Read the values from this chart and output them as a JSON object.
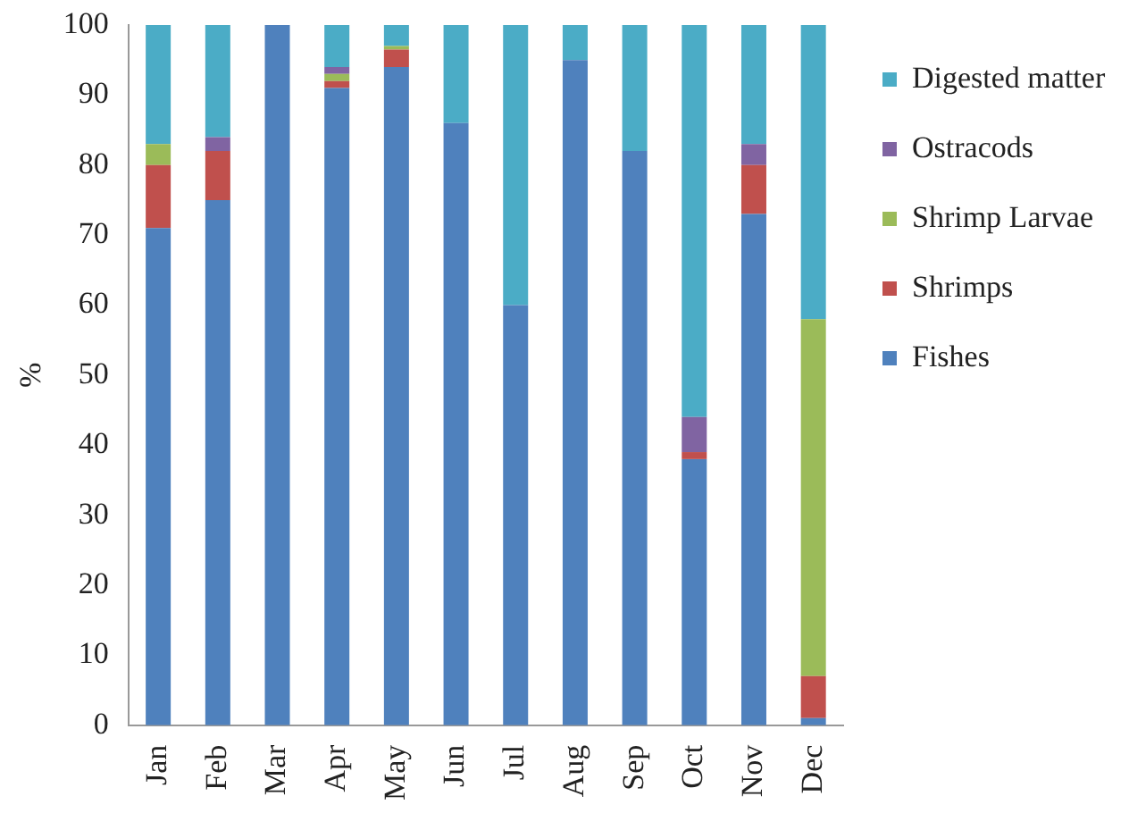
{
  "chart_data": {
    "type": "bar",
    "stacked": true,
    "ylabel": "%",
    "categories": [
      "Jan",
      "Feb",
      "Mar",
      "Apr",
      "May",
      "Jun",
      "Jul",
      "Aug",
      "Sep",
      "Oct",
      "Nov",
      "Dec"
    ],
    "series": [
      {
        "name": "Fishes",
        "color": "#4f81bd",
        "values": [
          71,
          75,
          100,
          91,
          94,
          86,
          60,
          95,
          82,
          38,
          73,
          1
        ]
      },
      {
        "name": "Shrimps",
        "color": "#c0504d",
        "values": [
          9,
          7,
          0,
          1,
          2.5,
          0,
          0,
          0,
          0,
          1,
          7,
          6
        ]
      },
      {
        "name": "Shrimp Larvae",
        "color": "#9bbb59",
        "values": [
          3,
          0,
          0,
          1,
          0.5,
          0,
          0,
          0,
          0,
          0,
          0,
          51
        ]
      },
      {
        "name": "Ostracods",
        "color": "#8064a2",
        "values": [
          0,
          2,
          0,
          1,
          0,
          0,
          0,
          0,
          0,
          5,
          3,
          0
        ]
      },
      {
        "name": "Digested matter",
        "color": "#4bacc6",
        "values": [
          17,
          16,
          0,
          6,
          3,
          14,
          40,
          5,
          18,
          56,
          17,
          42
        ]
      }
    ],
    "ylim": [
      0,
      100
    ],
    "yticks": [
      0,
      10,
      20,
      30,
      40,
      50,
      60,
      70,
      80,
      90,
      100
    ],
    "grid": false,
    "legend": "right"
  }
}
